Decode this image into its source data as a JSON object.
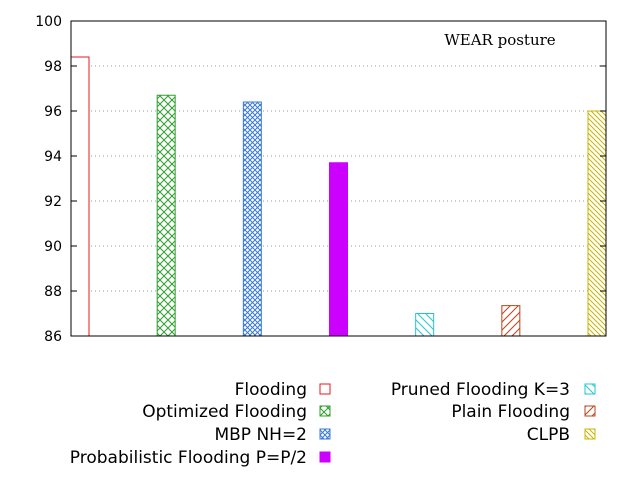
{
  "chart_data": {
    "type": "bar",
    "annotation": "WEAR posture",
    "ylim": [
      86,
      100
    ],
    "yticks": [
      86,
      88,
      90,
      92,
      94,
      96,
      98,
      100
    ],
    "grid": "horizontal dotted",
    "legend_position": "bottom",
    "series": [
      {
        "name": "Flooding",
        "value": 98.4,
        "color": "#e41a1c",
        "pattern": "none"
      },
      {
        "name": "Optimized Flooding",
        "value": 96.7,
        "color": "#2ca02c",
        "pattern": "crosshatch"
      },
      {
        "name": "MBP NH=2",
        "value": 96.4,
        "color": "#3a7bd5",
        "pattern": "dense-crosshatch"
      },
      {
        "name": "Probabilistic Flooding P=P/2",
        "value": 93.7,
        "color": "#cc00ff",
        "pattern": "solid"
      },
      {
        "name": "Pruned Flooding K=3",
        "value": 87.0,
        "color": "#1ec8d2",
        "pattern": "diagonal-back"
      },
      {
        "name": "Plain Flooding",
        "value": 87.35,
        "color": "#b8461b",
        "pattern": "diagonal-forward"
      },
      {
        "name": "CLPB",
        "value": 96.0,
        "color": "#c8b400",
        "pattern": "diagonal-back-dense"
      }
    ]
  }
}
